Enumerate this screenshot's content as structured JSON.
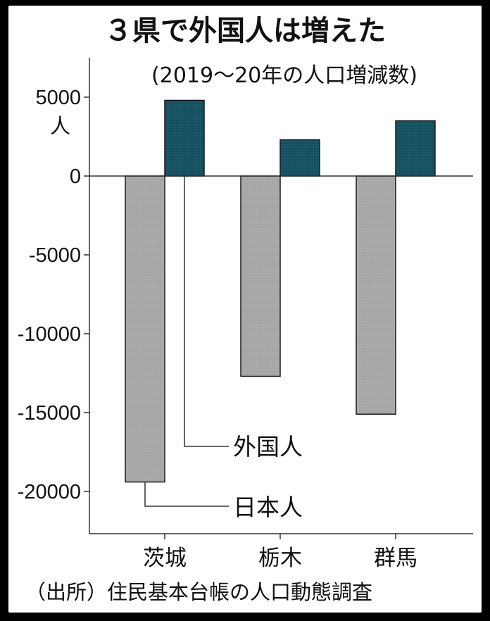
{
  "chart_data": {
    "type": "bar",
    "title": "３県で外国人は増えた",
    "subtitle": "(2019〜20年の人口増減数)",
    "y_unit": "人",
    "categories": [
      "茨城",
      "栃木",
      "群馬"
    ],
    "series": [
      {
        "name": "日本人",
        "color": "#a6a6a6",
        "values": [
          -19400,
          -12700,
          -15100
        ]
      },
      {
        "name": "外国人",
        "color": "#14505f",
        "values": [
          4800,
          2300,
          3500
        ]
      }
    ],
    "ylim": [
      -22500,
      7500
    ],
    "yticks": [
      5000,
      0,
      -5000,
      -10000,
      -15000,
      -20000
    ],
    "ytick_labels": [
      "5000",
      "0",
      "-5000",
      "-10000",
      "-15000",
      "-20000"
    ],
    "grid": false,
    "source": "（出所）住民基本台帳の人口動態調査"
  }
}
